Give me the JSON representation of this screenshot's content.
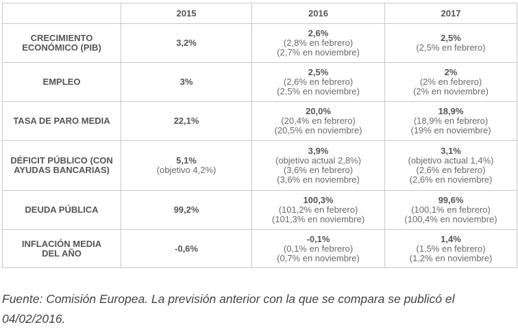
{
  "table": {
    "headers": [
      "",
      "2015",
      "2016",
      "2017"
    ],
    "rows": [
      {
        "label": "CRECIMIENTO ECONÓMICO (PIB)",
        "y2015": {
          "main": "3,2%",
          "sub": []
        },
        "y2016": {
          "main": "2,6%",
          "sub": [
            "(2,8% en febrero)",
            "(2,7% en noviembre)"
          ]
        },
        "y2017": {
          "main": "2,5%",
          "sub": [
            "(2,5% en febrero)"
          ]
        }
      },
      {
        "label": "EMPLEO",
        "y2015": {
          "main": "3%",
          "sub": []
        },
        "y2016": {
          "main": "2,5%",
          "sub": [
            "(2,6% en febrero)",
            "(2,5% en noviembre)"
          ]
        },
        "y2017": {
          "main": "2%",
          "sub": [
            "(2% en febrero)",
            "(2% en noviembre)"
          ]
        }
      },
      {
        "label": "TASA DE PARO MEDIA",
        "y2015": {
          "main": "22,1%",
          "sub": []
        },
        "y2016": {
          "main": "20,0%",
          "sub": [
            "(20,4% en febrero)",
            "(20,5% en noviembre)"
          ]
        },
        "y2017": {
          "main": "18,9%",
          "sub": [
            "(18,9% en febrero)",
            "(19% en noviembre)"
          ]
        }
      },
      {
        "label": "DÉFICIT PÚBLICO (CON AYUDAS BANCARIAS)",
        "y2015": {
          "main": "5,1%",
          "sub": [
            "(objetivo 4,2%)"
          ]
        },
        "y2016": {
          "main": "3,9%",
          "sub": [
            "(objetivo actual 2,8%)",
            "(3,6% en febrero)",
            "(3,6% en noviembre)"
          ]
        },
        "y2017": {
          "main": "3,1%",
          "sub": [
            "(objetivo actual 1,4%)",
            "(2,6% en febrero)",
            "(2,6% en noviembre)"
          ]
        }
      },
      {
        "label": "DEUDA PÚBLICA",
        "y2015": {
          "main": "99,2%",
          "sub": []
        },
        "y2016": {
          "main": "100,3%",
          "sub": [
            "(101,2% en febrero)",
            "(101,3% en noviembre)"
          ]
        },
        "y2017": {
          "main": "99,6%",
          "sub": [
            "(100,1% en febrero)",
            "(100,4% en noviembre)"
          ]
        }
      },
      {
        "label": "INFLACIÓN MEDIA DEL AÑO",
        "y2015": {
          "main": "-0,6%",
          "sub": []
        },
        "y2016": {
          "main": "-0,1%",
          "sub": [
            "(0,1% en febrero)",
            "(0,7% en noviembre)"
          ]
        },
        "y2017": {
          "main": "1,4%",
          "sub": [
            "(1,5% en febrero)",
            "(1,2% en noviembre)"
          ]
        }
      }
    ]
  },
  "source_note": "Fuente: Comisión Europea. La previsión anterior con la que se compara se publicó el 04/02/2016."
}
